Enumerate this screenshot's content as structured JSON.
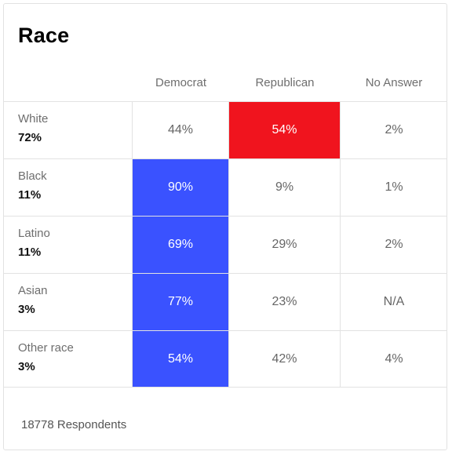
{
  "title": "Race",
  "columns": {
    "democrat": "Democrat",
    "republican": "Republican",
    "no_answer": "No Answer"
  },
  "rows": [
    {
      "group": "White",
      "share": "72%",
      "democrat": "44%",
      "republican": "54%",
      "no_answer": "2%",
      "highlight": "republican"
    },
    {
      "group": "Black",
      "share": "11%",
      "democrat": "90%",
      "republican": "9%",
      "no_answer": "1%",
      "highlight": "democrat"
    },
    {
      "group": "Latino",
      "share": "11%",
      "democrat": "69%",
      "republican": "29%",
      "no_answer": "2%",
      "highlight": "democrat"
    },
    {
      "group": "Asian",
      "share": "3%",
      "democrat": "77%",
      "republican": "23%",
      "no_answer": "N/A",
      "highlight": "democrat"
    },
    {
      "group": "Other race",
      "share": "3%",
      "democrat": "54%",
      "republican": "42%",
      "no_answer": "4%",
      "highlight": "democrat"
    }
  ],
  "footer": "18778 Respondents",
  "colors": {
    "democrat": "#3a52ff",
    "republican": "#f0141e"
  }
}
